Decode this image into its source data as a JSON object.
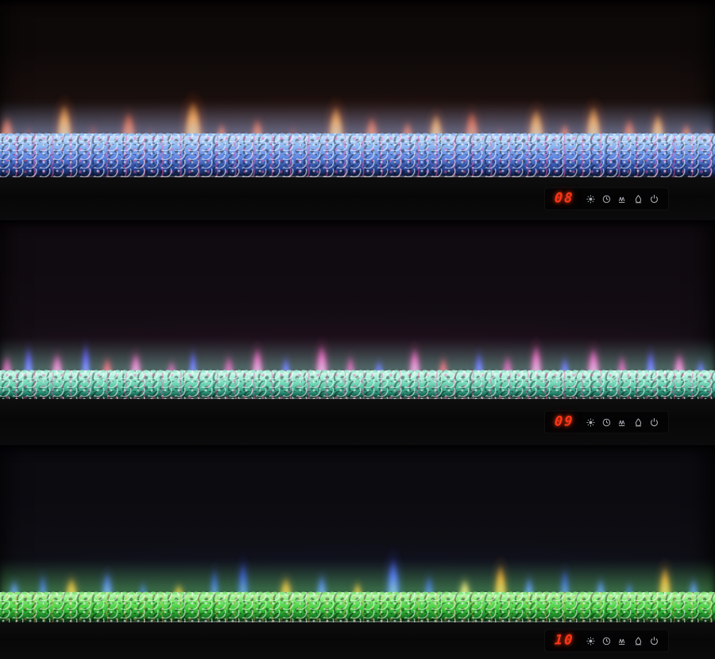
{
  "image": {
    "description": "Three stacked photos of a linear electric fireplace showing different flame and crystal ember-bed color themes",
    "background": "#000000"
  },
  "display_panel": {
    "digit_color": "#ff3517",
    "icon_color": "#a9adb3",
    "icons": [
      {
        "name": "brightness",
        "label": "flame brightness"
      },
      {
        "name": "timer",
        "label": "timer"
      },
      {
        "name": "flame-effect",
        "label": "flame effect"
      },
      {
        "name": "heater",
        "label": "heater"
      },
      {
        "name": "power",
        "label": "power"
      }
    ]
  },
  "panels": [
    {
      "name": "orange-flames-blue-crystals",
      "display_value": "08",
      "scene": {
        "bg_top": "#0e0909",
        "bg_mid": "#1a100e",
        "bg_bottom": "#261412",
        "haze": "rgba(150,38,18,0.40)",
        "bed_height": 55,
        "scene_height": 223,
        "bezel_height": 54
      },
      "bed": {
        "highlight": "#d4eaff",
        "mid": "#93bcf2",
        "base": "#5e86e0",
        "deep": "#24418f",
        "shadow": "#0a1026",
        "glow": "rgba(160,195,255,0.55)",
        "fleck": "rgba(255,90,170,0.45)"
      },
      "flame_palette": [
        {
          "core": "#ffe29a",
          "mid": "#ff9c33",
          "outer": "rgba(255,94,20,0.50)"
        },
        {
          "core": "#ffb34d",
          "mid": "#e8541e",
          "outer": "rgba(185,45,14,0.45)"
        },
        {
          "core": "#a82e16",
          "mid": "#6e1a0a",
          "outer": "rgba(110,26,10,0.35)"
        }
      ],
      "flames": [
        [
          1,
          26,
          58,
          1
        ],
        [
          4,
          20,
          38,
          2
        ],
        [
          9,
          30,
          84,
          0
        ],
        [
          13,
          22,
          44,
          2
        ],
        [
          18,
          28,
          68,
          1
        ],
        [
          21,
          18,
          34,
          2
        ],
        [
          27,
          34,
          90,
          0
        ],
        [
          31,
          20,
          44,
          1
        ],
        [
          36,
          24,
          54,
          1
        ],
        [
          41,
          22,
          40,
          2
        ],
        [
          47,
          30,
          80,
          0
        ],
        [
          52,
          26,
          58,
          1
        ],
        [
          57,
          22,
          48,
          1
        ],
        [
          61,
          26,
          64,
          0
        ],
        [
          66,
          28,
          70,
          1
        ],
        [
          70,
          20,
          38,
          2
        ],
        [
          75,
          30,
          74,
          0
        ],
        [
          79,
          22,
          44,
          1
        ],
        [
          83,
          30,
          80,
          0
        ],
        [
          88,
          24,
          54,
          1
        ],
        [
          92,
          26,
          64,
          0
        ],
        [
          96,
          22,
          44,
          1
        ],
        [
          99,
          18,
          38,
          2
        ]
      ]
    },
    {
      "name": "pink-purple-flames-teal-crystals",
      "display_value": "09",
      "scene": {
        "bg_top": "#100b10",
        "bg_mid": "#140e14",
        "bg_bottom": "#1a1019",
        "haze": "rgba(120,22,90,0.30)",
        "bed_height": 36,
        "scene_height": 225,
        "bezel_height": 58
      },
      "bed": {
        "highlight": "#eafff6",
        "mid": "#9fecd4",
        "base": "#5ecCA9",
        "deep": "#1f7e66",
        "shadow": "#06150f",
        "glow": "rgba(150,255,220,0.45)",
        "fleck": "rgba(255,70,170,0.38)"
      },
      "flame_palette": [
        {
          "core": "#ffd9f2",
          "mid": "#ff4fc0",
          "outer": "rgba(255,47,160,0.45)"
        },
        {
          "core": "#ff8ccf",
          "mid": "#e0269a",
          "outer": "rgba(205,32,135,0.40)"
        },
        {
          "core": "#b9b4ff",
          "mid": "#5b3cff",
          "outer": "rgba(85,60,255,0.45)"
        },
        {
          "core": "#ffa9b0",
          "mid": "#ff2e55",
          "outer": "rgba(255,50,80,0.40)"
        }
      ],
      "flames": [
        [
          1,
          20,
          54,
          1
        ],
        [
          4,
          16,
          70,
          2
        ],
        [
          8,
          22,
          58,
          0
        ],
        [
          12,
          16,
          76,
          2
        ],
        [
          15,
          20,
          50,
          3
        ],
        [
          19,
          22,
          60,
          0
        ],
        [
          24,
          18,
          44,
          1
        ],
        [
          27,
          14,
          64,
          2
        ],
        [
          32,
          20,
          54,
          1
        ],
        [
          36,
          22,
          70,
          0
        ],
        [
          40,
          16,
          50,
          2
        ],
        [
          45,
          24,
          76,
          0
        ],
        [
          49,
          18,
          54,
          1
        ],
        [
          53,
          16,
          44,
          2
        ],
        [
          58,
          22,
          70,
          0
        ],
        [
          62,
          18,
          50,
          3
        ],
        [
          67,
          16,
          60,
          2
        ],
        [
          71,
          20,
          54,
          1
        ],
        [
          75,
          22,
          76,
          0
        ],
        [
          79,
          16,
          50,
          2
        ],
        [
          83,
          24,
          70,
          0
        ],
        [
          87,
          18,
          54,
          1
        ],
        [
          91,
          16,
          64,
          2
        ],
        [
          95,
          22,
          58,
          0
        ],
        [
          98,
          16,
          44,
          2
        ]
      ]
    },
    {
      "name": "blue-orange-flames-green-crystals",
      "display_value": "10",
      "scene": {
        "bg_top": "#0b0b10",
        "bg_mid": "#0e0e14",
        "bg_bottom": "#12121c",
        "haze": "rgba(45,55,150,0.25)",
        "bed_height": 38,
        "scene_height": 223,
        "bezel_height": 46
      },
      "bed": {
        "highlight": "#d8ffd2",
        "mid": "#82e976",
        "base": "#3ec93e",
        "deep": "#157a22",
        "shadow": "#041208",
        "glow": "rgba(120,255,120,0.45)",
        "fleck": "rgba(255,170,80,0.30)"
      },
      "flame_palette": [
        {
          "core": "#cdd6ff",
          "mid": "#4a5cff",
          "outer": "rgba(70,90,255,0.50)"
        },
        {
          "core": "#ffe2b0",
          "mid": "#ff9a2e",
          "outer": "rgba(255,140,40,0.45)"
        },
        {
          "core": "#9aa8ff",
          "mid": "#2e3ed8",
          "outer": "rgba(50,60,220,0.40)"
        },
        {
          "core": "#fff6e8",
          "mid": "#ffc878",
          "outer": "rgba(255,200,120,0.45)"
        }
      ],
      "flames": [
        [
          2,
          20,
          48,
          0
        ],
        [
          6,
          18,
          60,
          2
        ],
        [
          10,
          24,
          54,
          1
        ],
        [
          15,
          22,
          64,
          0
        ],
        [
          20,
          16,
          44,
          2
        ],
        [
          25,
          20,
          40,
          1
        ],
        [
          30,
          18,
          70,
          2
        ],
        [
          34,
          22,
          86,
          2
        ],
        [
          40,
          24,
          54,
          1
        ],
        [
          45,
          20,
          58,
          0
        ],
        [
          50,
          18,
          44,
          1
        ],
        [
          55,
          26,
          92,
          0
        ],
        [
          60,
          20,
          58,
          2
        ],
        [
          65,
          22,
          50,
          3
        ],
        [
          70,
          24,
          80,
          1
        ],
        [
          74,
          18,
          54,
          0
        ],
        [
          79,
          20,
          70,
          2
        ],
        [
          84,
          18,
          50,
          0
        ],
        [
          88,
          16,
          44,
          2
        ],
        [
          93,
          24,
          76,
          1
        ],
        [
          97,
          18,
          50,
          0
        ]
      ]
    }
  ]
}
